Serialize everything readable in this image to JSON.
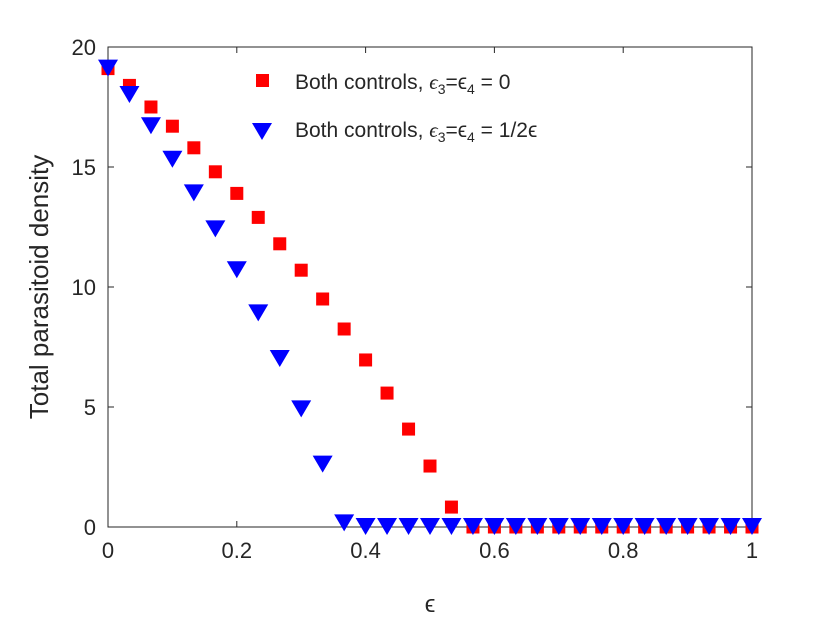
{
  "chart_data": {
    "type": "scatter",
    "title": "",
    "xlabel": "ϵ",
    "ylabel": "Total parasitoid density",
    "xlim": [
      0,
      1
    ],
    "ylim": [
      0,
      20
    ],
    "xticks": [
      0,
      0.2,
      0.4,
      0.6,
      0.8,
      1
    ],
    "xtick_labels": [
      "0",
      "0.2",
      "0.4",
      "0.6",
      "0.8",
      "1"
    ],
    "yticks": [
      0,
      5,
      10,
      15,
      20
    ],
    "ytick_labels": [
      "0",
      "5",
      "10",
      "15",
      "20"
    ],
    "grid": false,
    "legend_position": "top-right",
    "x": [
      0,
      0.0333,
      0.0667,
      0.1,
      0.1333,
      0.1667,
      0.2,
      0.2333,
      0.2667,
      0.3,
      0.3333,
      0.3667,
      0.4,
      0.4333,
      0.4667,
      0.5,
      0.5333,
      0.5667,
      0.6,
      0.6333,
      0.6667,
      0.7,
      0.7333,
      0.7667,
      0.8,
      0.8333,
      0.8667,
      0.9,
      0.9333,
      0.9667,
      1
    ],
    "series": [
      {
        "name": "Both controls, ϵ3=ϵ4 = 0",
        "legend_main": "Both controls, ",
        "legend_math": "ϵ",
        "legend_sub1": "3",
        "legend_eq": "=ϵ",
        "legend_sub2": "4",
        "legend_tail": " = 0",
        "marker": "square",
        "color": "#ff0000",
        "values": [
          19.1,
          18.4,
          17.5,
          16.7,
          15.8,
          14.8,
          13.9,
          12.9,
          11.8,
          10.7,
          9.5,
          8.25,
          6.96,
          5.58,
          4.08,
          2.54,
          0.83,
          0,
          0,
          0,
          0,
          0,
          0,
          0,
          0,
          0,
          0,
          0,
          0,
          0,
          0
        ]
      },
      {
        "name": "Both controls, ϵ3=ϵ4 = 1/2ϵ",
        "legend_main": "Both controls, ",
        "legend_math": "ϵ",
        "legend_sub1": "3",
        "legend_eq": "=ϵ",
        "legend_sub2": "4",
        "legend_tail": " = 1/2ϵ",
        "marker": "triangle-down",
        "color": "#0000ff",
        "values": [
          19.1,
          18.0,
          16.7,
          15.3,
          13.9,
          12.4,
          10.7,
          8.9,
          7.0,
          4.9,
          2.6,
          0.15,
          0,
          0,
          0,
          0,
          0,
          0,
          0,
          0,
          0,
          0,
          0,
          0,
          0,
          0,
          0,
          0,
          0,
          0,
          0
        ]
      }
    ]
  }
}
